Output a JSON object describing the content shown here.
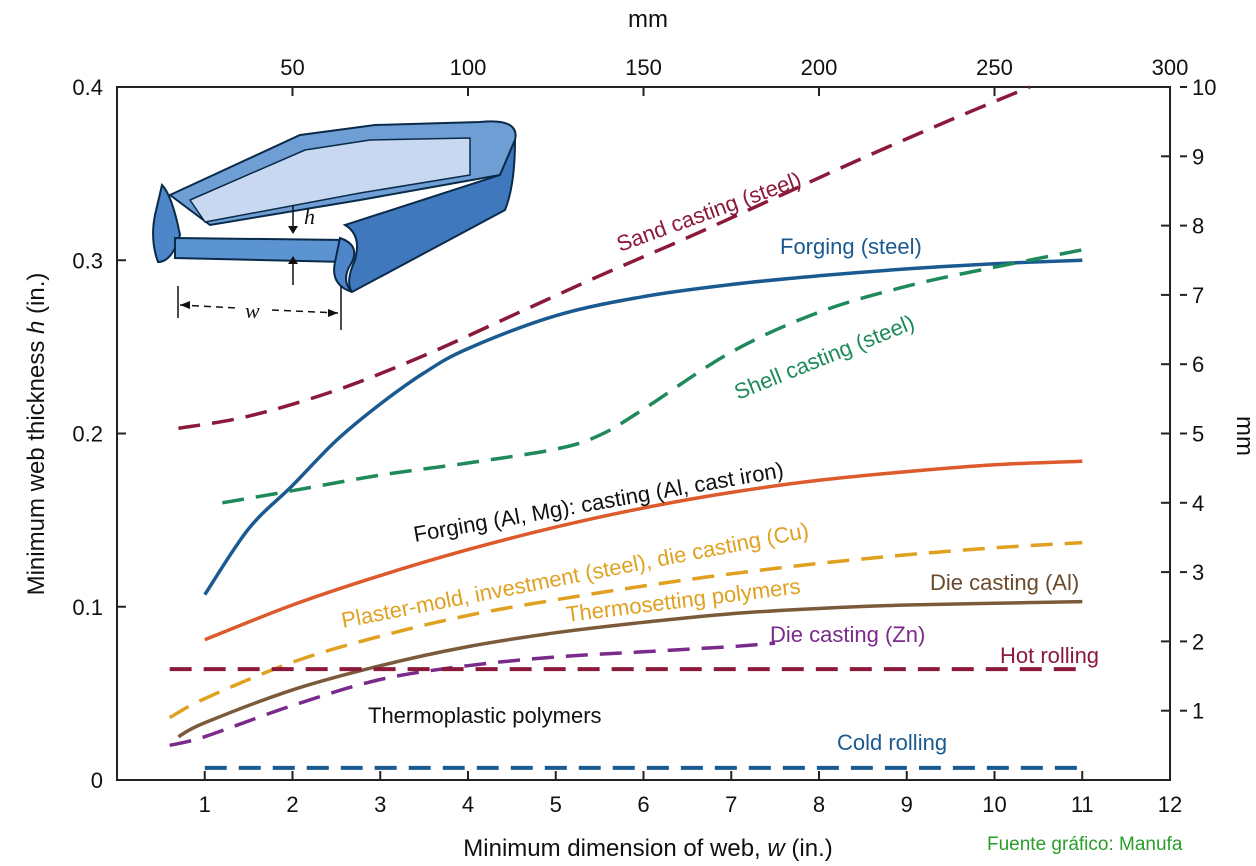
{
  "source_note": "Fuente gráfico: Manufa",
  "chart_data": {
    "type": "line",
    "title": "",
    "xlabel_prefix": "Minimum dimension of web, ",
    "xlabel_var": "w",
    "xlabel_suffix": " (in.)",
    "ylabel_prefix": "Minimum web thickness ",
    "ylabel_var": "h",
    "ylabel_suffix": " (in.)",
    "top_axis_label": "mm",
    "right_axis_label": "mm",
    "xlim": [
      0,
      12
    ],
    "ylim": [
      0,
      0.4
    ],
    "top_xlim_mm": [
      0,
      300
    ],
    "right_ylim_mm": [
      0,
      10
    ],
    "x_ticks": [
      1,
      2,
      3,
      4,
      5,
      6,
      7,
      8,
      9,
      10,
      11,
      12
    ],
    "y_ticks": [
      {
        "v": 0,
        "t": "0"
      },
      {
        "v": 0.1,
        "t": "0.1"
      },
      {
        "v": 0.2,
        "t": "0.2"
      },
      {
        "v": 0.3,
        "t": "0.3"
      },
      {
        "v": 0.4,
        "t": "0.4"
      }
    ],
    "top_ticks": [
      50,
      100,
      150,
      200,
      250,
      300
    ],
    "right_ticks": [
      1,
      2,
      3,
      4,
      5,
      6,
      7,
      8,
      9,
      10
    ],
    "grid": false,
    "inset_labels": {
      "h": "h",
      "w": "w"
    },
    "series": [
      {
        "name": "Sand casting (steel)",
        "color": "#8b1a3a",
        "dash": true,
        "x": [
          0.7,
          1.5,
          2.5,
          3.5,
          4.5,
          5.5,
          6.5,
          7.5,
          8.5,
          9.5,
          10.4
        ],
        "y": [
          0.203,
          0.21,
          0.225,
          0.245,
          0.268,
          0.291,
          0.313,
          0.336,
          0.359,
          0.381,
          0.4
        ]
      },
      {
        "name": "Forging  (steel)",
        "color": "#1a5a90",
        "dash": false,
        "x": [
          1.0,
          1.5,
          2.0,
          2.5,
          3.0,
          3.5,
          4.0,
          5.0,
          6.0,
          7.0,
          8.0,
          9.0,
          10.0,
          11.0
        ],
        "y": [
          0.107,
          0.145,
          0.17,
          0.196,
          0.217,
          0.235,
          0.249,
          0.268,
          0.279,
          0.286,
          0.291,
          0.295,
          0.298,
          0.3
        ]
      },
      {
        "name": "Shell casting (steel)",
        "color": "#1e8a5a",
        "dash": true,
        "x": [
          1.2,
          2.0,
          3.0,
          4.0,
          5.0,
          5.5,
          6.0,
          7.0,
          8.0,
          9.0,
          10.0,
          11.0
        ],
        "y": [
          0.16,
          0.167,
          0.176,
          0.183,
          0.191,
          0.199,
          0.214,
          0.247,
          0.27,
          0.285,
          0.296,
          0.306
        ]
      },
      {
        "name": "Forging (Al, Mg): casting (Al, cast iron)",
        "color": "#dd5a2c",
        "dash": false,
        "x": [
          1.0,
          2.0,
          3.0,
          4.0,
          5.0,
          6.0,
          7.0,
          8.0,
          9.0,
          10.0,
          11.0
        ],
        "y": [
          0.081,
          0.101,
          0.118,
          0.133,
          0.146,
          0.157,
          0.166,
          0.173,
          0.178,
          0.182,
          0.184
        ]
      },
      {
        "name": "Plaster-mold, investment (steel), die casting (Cu)",
        "color": "#e0a020",
        "dash": true,
        "x": [
          0.6,
          1.0,
          2.0,
          3.0,
          4.0,
          5.0,
          6.0,
          7.0,
          8.0,
          9.0,
          10.0,
          11.0
        ],
        "y": [
          0.036,
          0.047,
          0.068,
          0.083,
          0.095,
          0.104,
          0.112,
          0.119,
          0.125,
          0.13,
          0.134,
          0.137
        ]
      },
      {
        "name": "Thermosetting polymers",
        "color": "#e0a020",
        "dash": null,
        "x": [],
        "y": []
      },
      {
        "name": "Die casting (Al)",
        "color": "#7a5a3a",
        "dash": false,
        "x": [
          0.7,
          1.0,
          2.0,
          3.0,
          4.0,
          5.0,
          6.0,
          7.0,
          8.0,
          9.0,
          10.0,
          11.0
        ],
        "y": [
          0.025,
          0.033,
          0.052,
          0.066,
          0.077,
          0.085,
          0.091,
          0.096,
          0.099,
          0.101,
          0.102,
          0.103
        ]
      },
      {
        "name": "Die casting (Zn)",
        "color": "#7a2a8a",
        "dash": true,
        "x": [
          0.6,
          1.0,
          2.0,
          3.0,
          4.0,
          5.0,
          6.0,
          7.0,
          7.5
        ],
        "y": [
          0.02,
          0.025,
          0.043,
          0.058,
          0.066,
          0.071,
          0.074,
          0.077,
          0.079
        ]
      },
      {
        "name": "Hot rolling",
        "color": "#8b1a3a",
        "dash": true,
        "x": [
          0.6,
          11.0
        ],
        "y": [
          0.064,
          0.064
        ]
      },
      {
        "name": "Thermoplastic polymers",
        "color": "#111111",
        "dash": null,
        "x": [],
        "y": []
      },
      {
        "name": "Cold rolling",
        "color": "#1a5a90",
        "dash": true,
        "x": [
          1.0,
          11.0
        ],
        "y": [
          0.007,
          0.007
        ]
      }
    ]
  }
}
